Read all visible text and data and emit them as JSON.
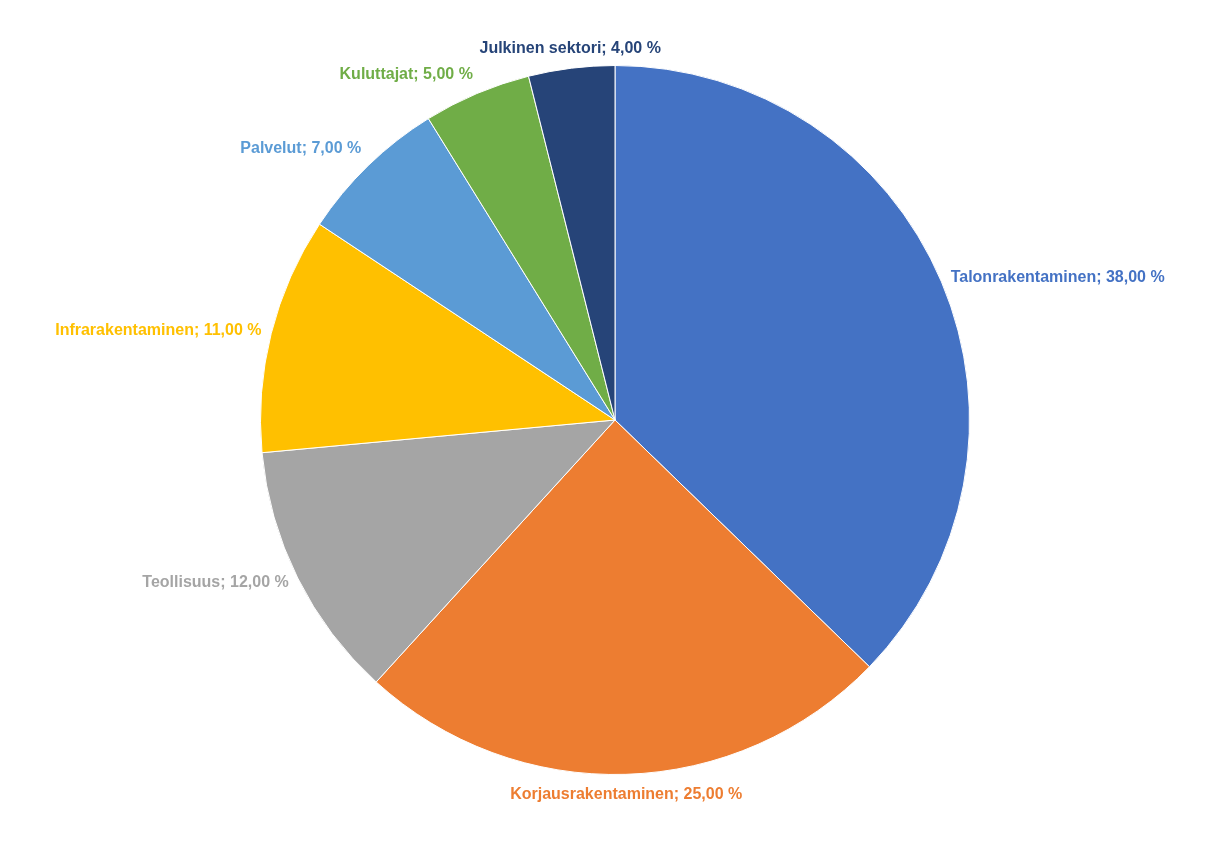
{
  "chart_data": {
    "type": "pie",
    "categories": [
      "Talonrakentaminen",
      "Korjausrakentaminen",
      "Teollisuus",
      "Infrarakentaminen",
      "Palvelut",
      "Kuluttajat",
      "Julkinen sektori"
    ],
    "values": [
      38,
      25,
      12,
      11,
      7,
      5,
      4
    ],
    "colors": [
      "#4472c4",
      "#ed7d31",
      "#a5a5a5",
      "#ffc000",
      "#5b9bd5",
      "#70ad47",
      "#264478"
    ],
    "value_labels": [
      "38,00 %",
      "25,00 %",
      "12,00 %",
      "11,00 %",
      "7,00 %",
      "5,00 %",
      "4,00 %"
    ],
    "legend": false
  }
}
